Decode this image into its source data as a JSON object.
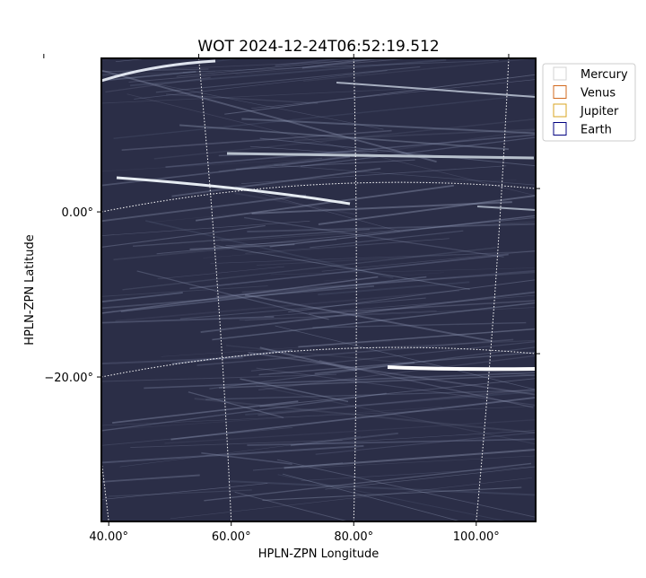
{
  "chart_data": {
    "type": "image",
    "title": "WOT 2024-12-24T06:52:19.512",
    "x_label": "HPLN-ZPN Longitude",
    "y_label": "HPLN-ZPN Latitude",
    "xlim": [
      38.8,
      109.7
    ],
    "ylim": [
      -37.5,
      18.6
    ],
    "xticks": [
      {
        "value": 40,
        "label": "40.00°"
      },
      {
        "value": 60,
        "label": "60.00°"
      },
      {
        "value": 80,
        "label": "80.00°"
      },
      {
        "value": 100,
        "label": "100.00°"
      }
    ],
    "yticks": [
      {
        "value": -20,
        "label": "−20.00°"
      },
      {
        "value": 0,
        "label": "0.00°"
      }
    ],
    "grid": true,
    "legend": "upper right",
    "series": [
      {
        "name": "Mercury",
        "color": "#d3d3d3"
      },
      {
        "name": "Venus",
        "color": "#d2691e"
      },
      {
        "name": "Jupiter",
        "color": "#daa520"
      },
      {
        "name": "Earth",
        "color": "#000080"
      }
    ]
  }
}
